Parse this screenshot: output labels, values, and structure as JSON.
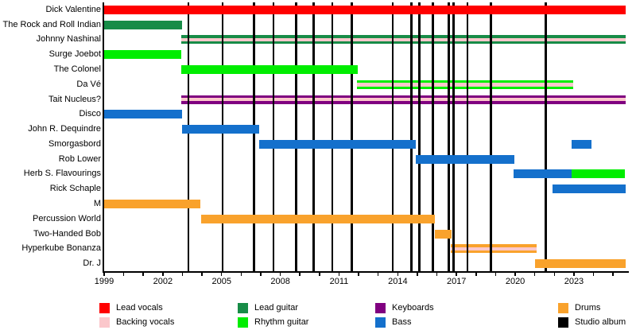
{
  "chart_data": {
    "type": "bar",
    "subtype": "band-membership-timeline-gantt",
    "title": "",
    "x_axis": {
      "min": 1999,
      "max": 2025.67,
      "labeled_ticks": [
        1999,
        2002,
        2005,
        2008,
        2011,
        2014,
        2017,
        2020,
        2023
      ],
      "minor_tick_every": 1,
      "grid": false
    },
    "colors": {
      "lead_vocals": "#FF0000",
      "backing_vocals": "#FBC7CB",
      "lead_guitar": "#178C47",
      "rhythm_guitar": "#00ED00",
      "keyboards": "#800080",
      "bass": "#1470CC",
      "drums": "#F9A22C",
      "studio_album": "#000000",
      "axis": "#000000",
      "background": "#FFFFFF"
    },
    "legend": [
      {
        "label": "Lead vocals",
        "role": "lead_vocals"
      },
      {
        "label": "Backing vocals",
        "role": "backing_vocals"
      },
      {
        "label": "Lead guitar",
        "role": "lead_guitar"
      },
      {
        "label": "Rhythm guitar",
        "role": "rhythm_guitar"
      },
      {
        "label": "Keyboards",
        "role": "keyboards"
      },
      {
        "label": "Bass",
        "role": "bass"
      },
      {
        "label": "Drums",
        "role": "drums"
      },
      {
        "label": "Studio album",
        "role": "studio_album"
      }
    ],
    "members": [
      {
        "name": "Dick Valentine",
        "segments": [
          {
            "role": "lead_vocals",
            "start": 1999.0,
            "end": 2025.65
          }
        ]
      },
      {
        "name": "The Rock and Roll Indian",
        "segments": [
          {
            "role": "lead_guitar",
            "start": 1999.0,
            "end": 2003.0
          }
        ]
      },
      {
        "name": "Johnny Nashinal",
        "segments": [
          {
            "role": "lead_guitar",
            "secondary": "backing_vocals",
            "start": 2002.95,
            "end": 2025.65
          }
        ]
      },
      {
        "name": "Surge Joebot",
        "segments": [
          {
            "role": "rhythm_guitar",
            "start": 1999.0,
            "end": 2002.95
          }
        ]
      },
      {
        "name": "The Colonel",
        "segments": [
          {
            "role": "rhythm_guitar",
            "start": 2002.95,
            "end": 2011.95
          }
        ]
      },
      {
        "name": "Da Vé",
        "segments": [
          {
            "role": "rhythm_guitar",
            "secondary": "backing_vocals",
            "start": 2011.9,
            "end": 2022.95
          }
        ]
      },
      {
        "name": "Tait Nucleus?",
        "segments": [
          {
            "role": "keyboards",
            "secondary": "backing_vocals",
            "start": 2002.95,
            "end": 2025.65
          }
        ]
      },
      {
        "name": "Disco",
        "segments": [
          {
            "role": "bass",
            "start": 1999.0,
            "end": 2003.0
          }
        ]
      },
      {
        "name": "John R. Dequindre",
        "segments": [
          {
            "role": "bass",
            "start": 2003.0,
            "end": 2006.9
          }
        ]
      },
      {
        "name": "Smorgasbord",
        "segments": [
          {
            "role": "bass",
            "start": 2006.9,
            "end": 2014.9
          },
          {
            "role": "bass",
            "start": 2022.9,
            "end": 2023.9
          }
        ]
      },
      {
        "name": "Rob Lower",
        "segments": [
          {
            "role": "bass",
            "start": 2014.9,
            "end": 2019.95
          }
        ]
      },
      {
        "name": "Herb S. Flavourings",
        "segments": [
          {
            "role": "bass",
            "start": 2019.9,
            "end": 2022.9
          },
          {
            "role": "rhythm_guitar",
            "start": 2022.9,
            "end": 2025.6
          }
        ]
      },
      {
        "name": "Rick Schaple",
        "segments": [
          {
            "role": "bass",
            "start": 2021.9,
            "end": 2025.65
          }
        ]
      },
      {
        "name": "M",
        "segments": [
          {
            "role": "drums",
            "start": 1999.0,
            "end": 2003.9
          }
        ]
      },
      {
        "name": "Percussion World",
        "segments": [
          {
            "role": "drums",
            "start": 2003.95,
            "end": 2015.9
          }
        ]
      },
      {
        "name": "Two-Handed Bob",
        "segments": [
          {
            "role": "drums",
            "start": 2015.9,
            "end": 2016.75
          }
        ]
      },
      {
        "name": "Hyperkube Bonanza",
        "segments": [
          {
            "role": "drums",
            "secondary": "backing_vocals",
            "start": 2016.7,
            "end": 2021.1
          }
        ]
      },
      {
        "name": "Dr. J",
        "segments": [
          {
            "role": "drums",
            "start": 2021.0,
            "end": 2025.65
          }
        ]
      }
    ],
    "album_lines": [
      2003.3,
      2005.05,
      2006.65,
      2007.65,
      2008.8,
      2009.7,
      2010.65,
      2011.65,
      2013.75,
      2014.7,
      2015.1,
      2015.8,
      2016.6,
      2016.85,
      2017.55,
      2018.75,
      2021.55
    ]
  }
}
